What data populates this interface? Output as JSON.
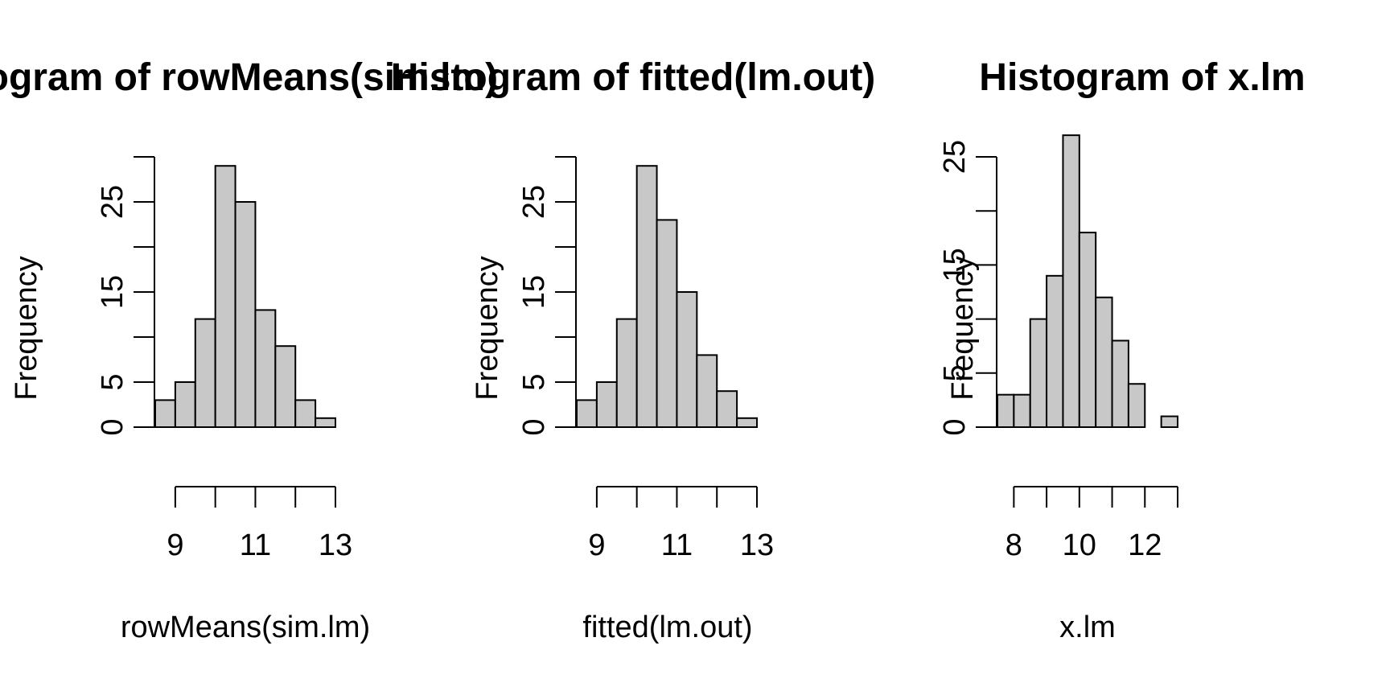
{
  "bar_color": "#c8c8c8",
  "chart_data": [
    {
      "type": "bar",
      "title": "Histogram of rowMeans(sim.lm)",
      "xlabel": "rowMeans(sim.lm)",
      "ylabel": "Frequency",
      "bin_width": 0.5,
      "breaks": [
        8.5,
        9.0,
        9.5,
        10.0,
        10.5,
        11.0,
        11.5,
        12.0,
        12.5,
        13.0
      ],
      "values": [
        3,
        5,
        12,
        29,
        25,
        13,
        9,
        3,
        1
      ],
      "xlim": [
        8.5,
        13
      ],
      "ylim": [
        0,
        30
      ],
      "xticks": [
        9,
        10,
        11,
        12,
        13
      ],
      "xtick_labels": [
        "9",
        "",
        "11",
        "",
        "13"
      ],
      "yticks": [
        0,
        5,
        10,
        15,
        20,
        25,
        30
      ],
      "ytick_labels": [
        "0",
        "5",
        "",
        "15",
        "",
        "25",
        ""
      ],
      "grid": false
    },
    {
      "type": "bar",
      "title": "Histogram of fitted(lm.out)",
      "xlabel": "fitted(lm.out)",
      "ylabel": "Frequency",
      "bin_width": 0.5,
      "breaks": [
        8.5,
        9.0,
        9.5,
        10.0,
        10.5,
        11.0,
        11.5,
        12.0,
        12.5,
        13.0
      ],
      "values": [
        3,
        5,
        12,
        29,
        23,
        15,
        8,
        4,
        1
      ],
      "xlim": [
        8.5,
        13
      ],
      "ylim": [
        0,
        30
      ],
      "xticks": [
        9,
        10,
        11,
        12,
        13
      ],
      "xtick_labels": [
        "9",
        "",
        "11",
        "",
        "13"
      ],
      "yticks": [
        0,
        5,
        10,
        15,
        20,
        25,
        30
      ],
      "ytick_labels": [
        "0",
        "5",
        "",
        "15",
        "",
        "25",
        ""
      ],
      "grid": false
    },
    {
      "type": "bar",
      "title": "Histogram of x.lm",
      "xlabel": "x.lm",
      "ylabel": "Frequency",
      "bin_width": 0.5,
      "breaks": [
        7.5,
        8.0,
        8.5,
        9.0,
        9.5,
        10.0,
        10.5,
        11.0,
        11.5,
        12.0,
        12.5,
        13.0
      ],
      "values": [
        3,
        3,
        10,
        14,
        27,
        18,
        12,
        8,
        4,
        0,
        1
      ],
      "xlim": [
        7.5,
        13
      ],
      "ylim": [
        0,
        25
      ],
      "xticks": [
        8,
        9,
        10,
        11,
        12,
        13
      ],
      "xtick_labels": [
        "8",
        "",
        "10",
        "",
        "12",
        ""
      ],
      "yticks": [
        0,
        5,
        10,
        15,
        20,
        25
      ],
      "ytick_labels": [
        "0",
        "5",
        "",
        "15",
        "",
        "25"
      ],
      "grid": false
    }
  ]
}
